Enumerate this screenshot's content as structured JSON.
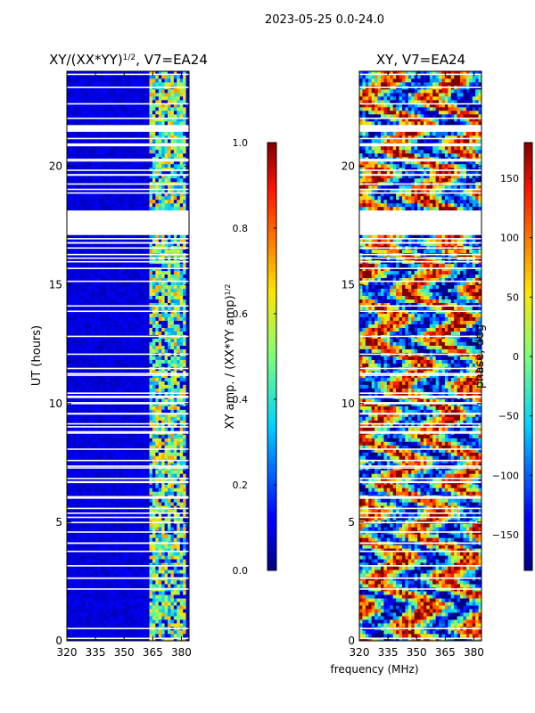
{
  "figure": {
    "suptitle": "2023-05-25 0.0-24.0",
    "shared_xlabel": "frequency (MHz)"
  },
  "chart_data": [
    {
      "type": "heatmap",
      "title": "XY/(XX*YY)",
      "title_exponent": "1/2",
      "title_suffix": ", V7=EA24",
      "xlabel": "frequency (MHz)",
      "ylabel": "UT (hours)",
      "xlim": [
        320,
        384
      ],
      "ylim": [
        0,
        24
      ],
      "x_ticks": [
        320,
        335,
        350,
        365,
        380
      ],
      "y_ticks": [
        0,
        5,
        10,
        15,
        20
      ],
      "colormap": "jet",
      "colorbar": {
        "label": "XY amp. / (XX*YY amp)",
        "label_exponent": "1/2",
        "range": [
          0.0,
          1.0
        ],
        "ticks": [
          "0.0",
          "0.2",
          "0.4",
          "0.6",
          "0.8",
          "1.0"
        ]
      },
      "data_gaps_hours": [
        [
          17.1,
          18.1
        ],
        [
          21.4,
          21.8
        ]
      ],
      "bright_band_mhz": [
        363,
        382
      ],
      "typical_value_outside_band": 0.05,
      "typical_value_in_band": 0.6
    },
    {
      "type": "heatmap",
      "title": "XY, V7=EA24",
      "xlabel": "frequency (MHz)",
      "ylabel": "",
      "xlim": [
        320,
        384
      ],
      "ylim": [
        0,
        24
      ],
      "x_ticks": [
        320,
        335,
        350,
        365,
        380
      ],
      "y_ticks": [
        0,
        5,
        10,
        15,
        20
      ],
      "colormap": "jet",
      "colorbar": {
        "label": "phase, deg",
        "range": [
          -180,
          180
        ],
        "ticks": [
          "150",
          "100",
          "50",
          "0",
          "−50",
          "−100",
          "−150"
        ]
      },
      "data_gaps_hours": [
        [
          17.1,
          18.1
        ],
        [
          21.4,
          21.8
        ]
      ]
    }
  ]
}
